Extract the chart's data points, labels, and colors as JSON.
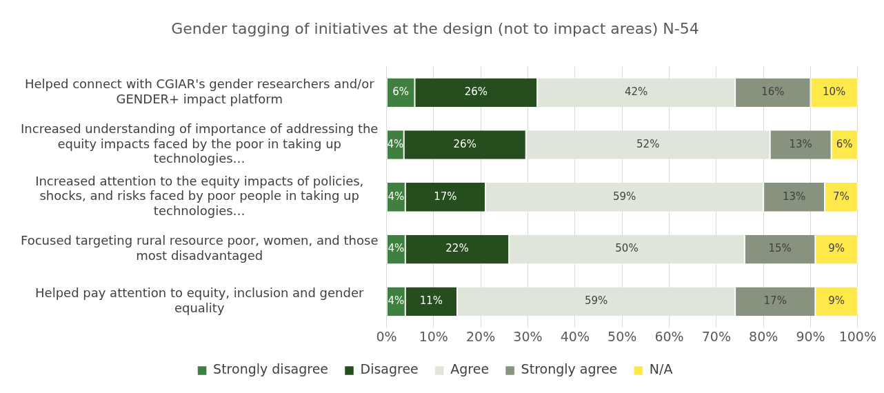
{
  "chart_data": {
    "type": "bar",
    "orientation": "horizontal",
    "stacked": true,
    "title": "Gender tagging of initiatives at the design (not to impact areas) N-54",
    "categories": [
      "Helped connect with CGIAR's gender researchers and/or GENDER+ impact platform",
      "Increased understanding of importance of addressing the equity impacts faced by the poor in taking up technologies…",
      "Increased attention to the equity impacts of policies, shocks, and risks faced by poor people in taking up technologies…",
      "Focused targeting rural resource poor, women, and those most disadvantaged",
      "Helped pay attention to equity, inclusion and gender equality"
    ],
    "series": [
      {
        "name": "Strongly disagree",
        "color": "#3f7f3f",
        "values": [
          6,
          3.7,
          4,
          4,
          4
        ],
        "value_labels": [
          "6%",
          "4%",
          "4%",
          "4%",
          "4%"
        ]
      },
      {
        "name": "Disagree",
        "color": "#264d1e",
        "values": [
          26,
          25.9,
          17,
          22,
          11
        ],
        "value_labels": [
          "26%",
          "26%",
          "17%",
          "22%",
          "11%"
        ]
      },
      {
        "name": "Agree",
        "color": "#dfe6d9",
        "values": [
          42,
          51.8,
          59,
          50,
          59
        ],
        "value_labels": [
          "42%",
          "52%",
          "59%",
          "50%",
          "59%"
        ]
      },
      {
        "name": "Strongly agree",
        "color": "#87927f",
        "values": [
          16,
          13,
          13,
          15,
          17
        ],
        "value_labels": [
          "16%",
          "13%",
          "13%",
          "15%",
          "17%"
        ]
      },
      {
        "name": "N/A",
        "color": "#ffe84a",
        "values": [
          10,
          5.6,
          7,
          9,
          9
        ],
        "value_labels": [
          "10%",
          "6%",
          "7%",
          "9%",
          "9%"
        ]
      }
    ],
    "xlim": [
      0,
      100
    ],
    "xticks": [
      {
        "value": 0,
        "label": "0%"
      },
      {
        "value": 10,
        "label": "10%"
      },
      {
        "value": 20,
        "label": "20%"
      },
      {
        "value": 30,
        "label": "30%"
      },
      {
        "value": 40,
        "label": "40%"
      },
      {
        "value": 50,
        "label": "50%"
      },
      {
        "value": 60,
        "label": "60%"
      },
      {
        "value": 70,
        "label": "70%"
      },
      {
        "value": 80,
        "label": "80%"
      },
      {
        "value": 90,
        "label": "90%"
      },
      {
        "value": 100,
        "label": "100%"
      }
    ],
    "grid": "x",
    "legend": "bottom"
  }
}
